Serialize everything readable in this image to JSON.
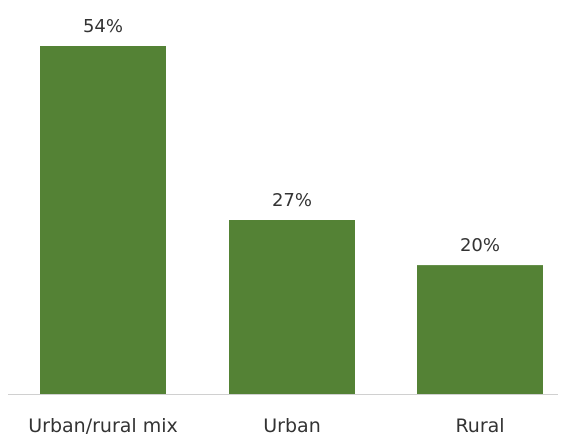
{
  "chart_data": {
    "type": "bar",
    "categories": [
      "Urban/rural mix",
      "Urban",
      "Rural"
    ],
    "values": [
      54,
      27,
      20
    ],
    "value_labels": [
      "54%",
      "27%",
      "20%"
    ],
    "title": "",
    "xlabel": "",
    "ylabel": "",
    "ylim": [
      0,
      54
    ],
    "grid": false,
    "bar_color": "#548235",
    "axis_color": "#d0d0d0",
    "text_color": "#333333"
  }
}
